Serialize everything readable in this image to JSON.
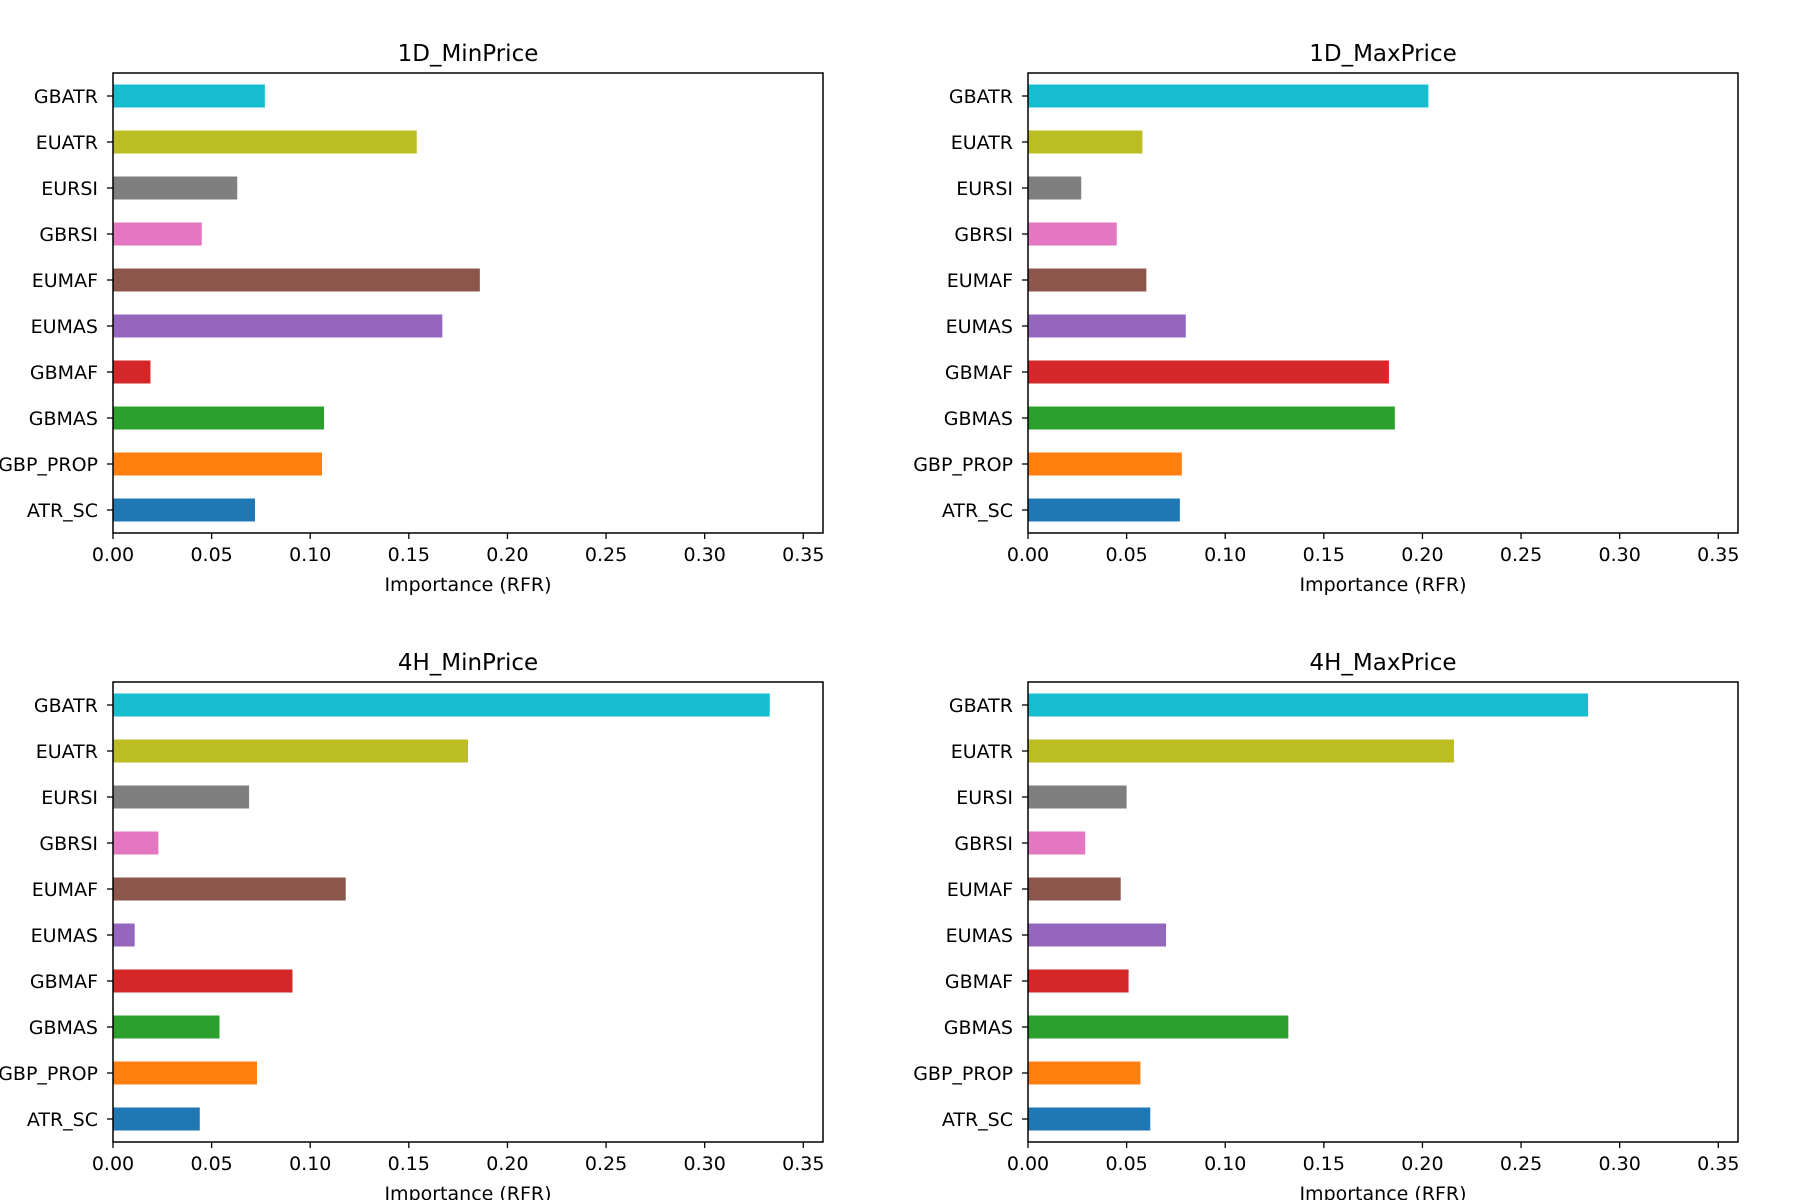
{
  "categories": [
    "ATR_SC",
    "GBP_PROP",
    "GBMAS",
    "GBMAF",
    "EUMAS",
    "EUMAF",
    "GBRSI",
    "EURSI",
    "EUATR",
    "GBATR"
  ],
  "colors": [
    "#1f77b4",
    "#ff7f0e",
    "#2ca02c",
    "#d62728",
    "#9467bd",
    "#8c564b",
    "#e377c2",
    "#7f7f7f",
    "#bcbd22",
    "#17becf"
  ],
  "chart_data": [
    {
      "type": "bar",
      "orientation": "horizontal",
      "title": "1D_MinPrice",
      "xlabel": "Importance (RFR)",
      "ylabel": "",
      "xlim": [
        0,
        0.36
      ],
      "xticks": [
        "0.00",
        "0.05",
        "0.10",
        "0.15",
        "0.20",
        "0.25",
        "0.30",
        "0.35"
      ],
      "categories": [
        "ATR_SC",
        "GBP_PROP",
        "GBMAS",
        "GBMAF",
        "EUMAS",
        "EUMAF",
        "GBRSI",
        "EURSI",
        "EUATR",
        "GBATR"
      ],
      "values": [
        0.072,
        0.106,
        0.107,
        0.019,
        0.167,
        0.186,
        0.045,
        0.063,
        0.154,
        0.077
      ]
    },
    {
      "type": "bar",
      "orientation": "horizontal",
      "title": "1D_MaxPrice",
      "xlabel": "Importance (RFR)",
      "ylabel": "",
      "xlim": [
        0,
        0.36
      ],
      "xticks": [
        "0.00",
        "0.05",
        "0.10",
        "0.15",
        "0.20",
        "0.25",
        "0.30",
        "0.35"
      ],
      "categories": [
        "ATR_SC",
        "GBP_PROP",
        "GBMAS",
        "GBMAF",
        "EUMAS",
        "EUMAF",
        "GBRSI",
        "EURSI",
        "EUATR",
        "GBATR"
      ],
      "values": [
        0.077,
        0.078,
        0.186,
        0.183,
        0.08,
        0.06,
        0.045,
        0.027,
        0.058,
        0.203
      ]
    },
    {
      "type": "bar",
      "orientation": "horizontal",
      "title": "4H_MinPrice",
      "xlabel": "Importance (RFR)",
      "ylabel": "",
      "xlim": [
        0,
        0.36
      ],
      "xticks": [
        "0.00",
        "0.05",
        "0.10",
        "0.15",
        "0.20",
        "0.25",
        "0.30",
        "0.35"
      ],
      "categories": [
        "ATR_SC",
        "GBP_PROP",
        "GBMAS",
        "GBMAF",
        "EUMAS",
        "EUMAF",
        "GBRSI",
        "EURSI",
        "EUATR",
        "GBATR"
      ],
      "values": [
        0.044,
        0.073,
        0.054,
        0.091,
        0.011,
        0.118,
        0.023,
        0.069,
        0.18,
        0.333
      ]
    },
    {
      "type": "bar",
      "orientation": "horizontal",
      "title": "4H_MaxPrice",
      "xlabel": "Importance (RFR)",
      "ylabel": "",
      "xlim": [
        0,
        0.36
      ],
      "xticks": [
        "0.00",
        "0.05",
        "0.10",
        "0.15",
        "0.20",
        "0.25",
        "0.30",
        "0.35"
      ],
      "categories": [
        "ATR_SC",
        "GBP_PROP",
        "GBMAS",
        "GBMAF",
        "EUMAS",
        "EUMAF",
        "GBRSI",
        "EURSI",
        "EUATR",
        "GBATR"
      ],
      "values": [
        0.062,
        0.057,
        0.132,
        0.051,
        0.07,
        0.047,
        0.029,
        0.05,
        0.216,
        0.284
      ]
    }
  ]
}
